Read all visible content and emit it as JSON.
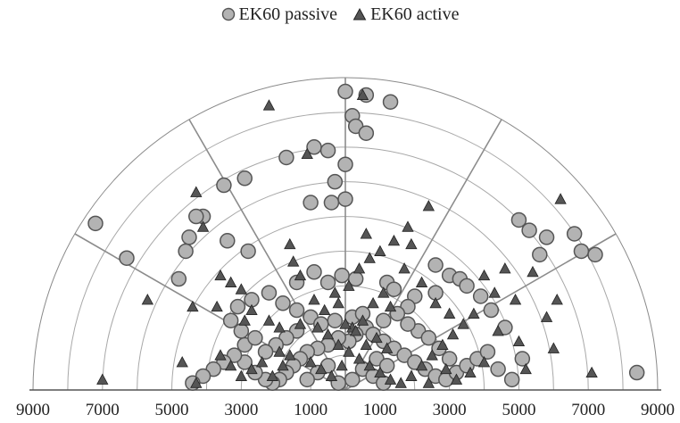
{
  "chart_data": {
    "type": "scatter",
    "subtype": "polar-half",
    "title": "",
    "xlabel": "",
    "ylabel": "",
    "radial_max": 9000,
    "rings": [
      1000,
      2000,
      3000,
      4000,
      5000,
      6000,
      7000,
      8000,
      9000
    ],
    "spokes_deg": [
      30,
      60,
      90,
      120,
      150
    ],
    "tick_labels": [
      "9000",
      "7000",
      "5000",
      "3000",
      "1000",
      "1000",
      "3000",
      "5000",
      "7000",
      "9000"
    ],
    "tick_values": [
      -9000,
      -7000,
      -5000,
      -3000,
      -1000,
      1000,
      3000,
      5000,
      7000,
      9000
    ],
    "legend_position": "top",
    "series": [
      {
        "name": "EK60 passive",
        "marker": "circle",
        "color": "#b3b3b3",
        "points": [
          [
            0,
            8600
          ],
          [
            600,
            8500
          ],
          [
            1300,
            8300
          ],
          [
            200,
            7900
          ],
          [
            300,
            7600
          ],
          [
            600,
            7400
          ],
          [
            -900,
            7000
          ],
          [
            -500,
            6900
          ],
          [
            -1700,
            6700
          ],
          [
            -2900,
            6100
          ],
          [
            -3500,
            5900
          ],
          [
            0,
            6500
          ],
          [
            -300,
            6000
          ],
          [
            -1000,
            5400
          ],
          [
            -400,
            5400
          ],
          [
            0,
            5500
          ],
          [
            -4100,
            5000
          ],
          [
            -4300,
            5000
          ],
          [
            -4500,
            4400
          ],
          [
            -4600,
            4000
          ],
          [
            -7200,
            4800
          ],
          [
            -6300,
            3800
          ],
          [
            -3400,
            4300
          ],
          [
            -2800,
            4000
          ],
          [
            -4800,
            3200
          ],
          [
            -1400,
            3100
          ],
          [
            -900,
            3400
          ],
          [
            -500,
            3100
          ],
          [
            -100,
            3300
          ],
          [
            300,
            3200
          ],
          [
            1200,
            3100
          ],
          [
            1400,
            2900
          ],
          [
            2600,
            3600
          ],
          [
            3000,
            3300
          ],
          [
            3300,
            3200
          ],
          [
            3500,
            3000
          ],
          [
            2600,
            2800
          ],
          [
            2000,
            2700
          ],
          [
            1800,
            2400
          ],
          [
            1500,
            2200
          ],
          [
            1100,
            2000
          ],
          [
            600,
            1800
          ],
          [
            300,
            1600
          ],
          [
            100,
            1400
          ],
          [
            -200,
            1500
          ],
          [
            -500,
            1300
          ],
          [
            -800,
            1200
          ],
          [
            -1100,
            1100
          ],
          [
            -1300,
            900
          ],
          [
            -1500,
            700
          ],
          [
            -1700,
            500
          ],
          [
            -1900,
            300
          ],
          [
            -2100,
            200
          ],
          [
            -2300,
            300
          ],
          [
            -2600,
            500
          ],
          [
            -2900,
            800
          ],
          [
            -3200,
            1000
          ],
          [
            -3500,
            800
          ],
          [
            -3800,
            600
          ],
          [
            -4100,
            400
          ],
          [
            -4400,
            200
          ],
          [
            -2900,
            1300
          ],
          [
            -2600,
            1500
          ],
          [
            -3000,
            1700
          ],
          [
            -3300,
            2000
          ],
          [
            -3100,
            2400
          ],
          [
            -2700,
            2600
          ],
          [
            -2200,
            2800
          ],
          [
            -1800,
            2500
          ],
          [
            -1400,
            2300
          ],
          [
            -1000,
            2100
          ],
          [
            -700,
            1900
          ],
          [
            -300,
            2000
          ],
          [
            200,
            2100
          ],
          [
            500,
            2200
          ],
          [
            800,
            1600
          ],
          [
            1100,
            1400
          ],
          [
            1400,
            1200
          ],
          [
            1700,
            1000
          ],
          [
            2000,
            800
          ],
          [
            2300,
            600
          ],
          [
            2600,
            400
          ],
          [
            2900,
            300
          ],
          [
            3200,
            500
          ],
          [
            3500,
            700
          ],
          [
            3800,
            900
          ],
          [
            4100,
            1100
          ],
          [
            4400,
            600
          ],
          [
            4800,
            300
          ],
          [
            5100,
            900
          ],
          [
            4600,
            1800
          ],
          [
            4200,
            2300
          ],
          [
            3900,
            2700
          ],
          [
            5000,
            4900
          ],
          [
            5300,
            4600
          ],
          [
            5800,
            4400
          ],
          [
            6600,
            4500
          ],
          [
            6800,
            4000
          ],
          [
            7200,
            3900
          ],
          [
            5600,
            3900
          ],
          [
            2100,
            1700
          ],
          [
            1800,
            1900
          ],
          [
            2400,
            1500
          ],
          [
            2700,
            1200
          ],
          [
            3000,
            900
          ],
          [
            500,
            600
          ],
          [
            800,
            400
          ],
          [
            1100,
            200
          ],
          [
            -500,
            700
          ],
          [
            -800,
            500
          ],
          [
            -1100,
            300
          ],
          [
            200,
            300
          ],
          [
            -200,
            200
          ],
          [
            900,
            900
          ],
          [
            1200,
            700
          ],
          [
            -1400,
            1700
          ],
          [
            -1700,
            1500
          ],
          [
            -2000,
            1300
          ],
          [
            -2300,
            1100
          ],
          [
            8400,
            500
          ]
        ]
      },
      {
        "name": "EK60 active",
        "marker": "triangle",
        "color": "#555555",
        "points": [
          [
            500,
            8500
          ],
          [
            -2200,
            8200
          ],
          [
            -1100,
            6800
          ],
          [
            -4300,
            5700
          ],
          [
            2400,
            5300
          ],
          [
            6200,
            5500
          ],
          [
            -4100,
            4700
          ],
          [
            1800,
            4700
          ],
          [
            1900,
            4200
          ],
          [
            600,
            4500
          ],
          [
            -1600,
            4200
          ],
          [
            -1500,
            3700
          ],
          [
            -1300,
            3300
          ],
          [
            -3300,
            3100
          ],
          [
            -3000,
            2900
          ],
          [
            -4400,
            2400
          ],
          [
            -5700,
            2600
          ],
          [
            -3700,
            2400
          ],
          [
            -2900,
            2000
          ],
          [
            -2700,
            2300
          ],
          [
            -2200,
            2000
          ],
          [
            -1900,
            1800
          ],
          [
            -1300,
            1900
          ],
          [
            -800,
            1800
          ],
          [
            -500,
            1600
          ],
          [
            -200,
            1300
          ],
          [
            100,
            1100
          ],
          [
            400,
            900
          ],
          [
            700,
            700
          ],
          [
            1000,
            500
          ],
          [
            1300,
            300
          ],
          [
            1600,
            200
          ],
          [
            1900,
            400
          ],
          [
            2200,
            700
          ],
          [
            2500,
            1000
          ],
          [
            2800,
            1300
          ],
          [
            3100,
            1600
          ],
          [
            3400,
            1900
          ],
          [
            3700,
            2200
          ],
          [
            4000,
            3300
          ],
          [
            4600,
            3500
          ],
          [
            5400,
            3400
          ],
          [
            6100,
            2600
          ],
          [
            5800,
            2100
          ],
          [
            4900,
            2600
          ],
          [
            4400,
            1700
          ],
          [
            5200,
            600
          ],
          [
            6000,
            1200
          ],
          [
            7100,
            500
          ],
          [
            -7000,
            300
          ],
          [
            -4300,
            200
          ],
          [
            -4700,
            800
          ],
          [
            -2100,
            400
          ],
          [
            -1800,
            700
          ],
          [
            -1600,
            1000
          ],
          [
            -1000,
            800
          ],
          [
            -700,
            600
          ],
          [
            -400,
            400
          ],
          [
            -100,
            700
          ],
          [
            200,
            1800
          ],
          [
            500,
            2000
          ],
          [
            800,
            2500
          ],
          [
            1100,
            2800
          ],
          [
            1300,
            2400
          ],
          [
            -600,
            2300
          ],
          [
            -900,
            2600
          ],
          [
            -300,
            2800
          ],
          [
            100,
            3000
          ],
          [
            400,
            3500
          ],
          [
            700,
            3800
          ],
          [
            1000,
            4000
          ],
          [
            1400,
            4300
          ],
          [
            -1900,
            1100
          ],
          [
            -2400,
            800
          ],
          [
            -2700,
            600
          ],
          [
            -3000,
            400
          ],
          [
            -3300,
            700
          ],
          [
            -3600,
            1000
          ],
          [
            3200,
            300
          ],
          [
            2900,
            600
          ],
          [
            3600,
            500
          ],
          [
            4000,
            800
          ],
          [
            2400,
            200
          ],
          [
            1200,
            1200
          ],
          [
            900,
            1500
          ],
          [
            600,
            1300
          ],
          [
            300,
            1700
          ],
          [
            0,
            1900
          ],
          [
            -200,
            2500
          ],
          [
            1700,
            3500
          ],
          [
            2200,
            3100
          ],
          [
            2600,
            2500
          ],
          [
            3000,
            2200
          ],
          [
            4300,
            2800
          ],
          [
            5000,
            1400
          ],
          [
            -3600,
            3300
          ]
        ]
      }
    ]
  }
}
